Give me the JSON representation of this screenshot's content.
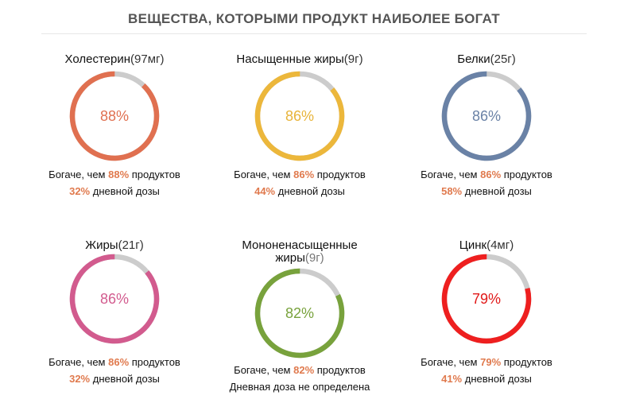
{
  "page": {
    "title": "ВЕЩЕСТВА, КОТОРЫМИ ПРОДУКТ НАИБОЛЕЕ БОГАТ"
  },
  "labels": {
    "richer_prefix": "Богаче, чем ",
    "richer_suffix": " продуктов",
    "daily_suffix": " дневной дозы"
  },
  "colors": {
    "track": "#cccccc",
    "highlight": "#e07a4e"
  },
  "cards": [
    {
      "name": "Холестерин",
      "amount": "(97мг)",
      "percent_text": "88%",
      "percent": 88,
      "richer_value": "88%",
      "daily_value": "32%",
      "daily_note": "",
      "color": "#e07050",
      "pct_color": "#e07050"
    },
    {
      "name": "Насыщенные жиры",
      "amount": "(9г)",
      "percent_text": "86%",
      "percent": 86,
      "richer_value": "86%",
      "daily_value": "44%",
      "daily_note": "",
      "color": "#ecb73b",
      "pct_color": "#e8b43a"
    },
    {
      "name": "Белки",
      "amount": "(25г)",
      "percent_text": "86%",
      "percent": 86,
      "richer_value": "86%",
      "daily_value": "58%",
      "daily_note": "",
      "color": "#6a82a6",
      "pct_color": "#6a82a6"
    },
    {
      "name": "Жиры",
      "amount": "(21г)",
      "percent_text": "86%",
      "percent": 86,
      "richer_value": "86%",
      "daily_value": "32%",
      "daily_note": "",
      "color": "#d25b8e",
      "pct_color": "#d25b8e"
    },
    {
      "name": "Мононенасыщенные жиры",
      "amount": "(9г)",
      "percent_text": "82%",
      "percent": 82,
      "richer_value": "82%",
      "daily_value": "",
      "daily_note": "Дневная доза не определена",
      "color": "#78a23c",
      "pct_color": "#78a23c"
    },
    {
      "name": "Цинк",
      "amount": "(4мг)",
      "percent_text": "79%",
      "percent": 79,
      "richer_value": "79%",
      "daily_value": "41%",
      "daily_note": "",
      "color": "#ee1f1f",
      "pct_color": "#e11818"
    }
  ]
}
